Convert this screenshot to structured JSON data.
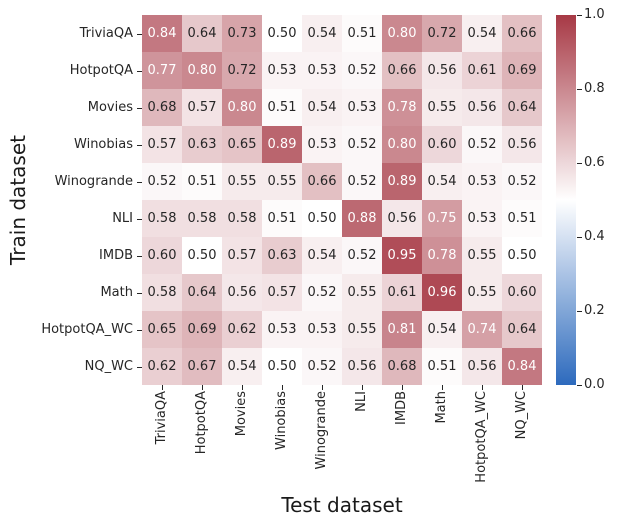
{
  "chart_data": {
    "type": "heatmap",
    "title": "",
    "xlabel": "Test dataset",
    "ylabel": "Train dataset",
    "rows": [
      "TriviaQA",
      "HotpotQA",
      "Movies",
      "Winobias",
      "Winogrande",
      "NLI",
      "IMDB",
      "Math",
      "HotpotQA_WC",
      "NQ_WC"
    ],
    "columns": [
      "TriviaQA",
      "HotpotQA",
      "Movies",
      "Winobias",
      "Winogrande",
      "NLI",
      "IMDB",
      "Math",
      "HotpotQA_WC",
      "NQ_WC"
    ],
    "values": [
      [
        0.84,
        0.64,
        0.73,
        0.5,
        0.54,
        0.51,
        0.8,
        0.72,
        0.54,
        0.66
      ],
      [
        0.77,
        0.8,
        0.72,
        0.53,
        0.53,
        0.52,
        0.66,
        0.56,
        0.61,
        0.69
      ],
      [
        0.68,
        0.57,
        0.8,
        0.51,
        0.54,
        0.53,
        0.78,
        0.55,
        0.56,
        0.64
      ],
      [
        0.57,
        0.63,
        0.65,
        0.89,
        0.53,
        0.52,
        0.8,
        0.6,
        0.52,
        0.56
      ],
      [
        0.52,
        0.51,
        0.55,
        0.55,
        0.66,
        0.52,
        0.89,
        0.54,
        0.53,
        0.52
      ],
      [
        0.58,
        0.58,
        0.58,
        0.51,
        0.5,
        0.88,
        0.56,
        0.75,
        0.53,
        0.51
      ],
      [
        0.6,
        0.5,
        0.57,
        0.63,
        0.54,
        0.52,
        0.95,
        0.78,
        0.55,
        0.5
      ],
      [
        0.58,
        0.64,
        0.56,
        0.57,
        0.52,
        0.55,
        0.61,
        0.96,
        0.55,
        0.6
      ],
      [
        0.65,
        0.69,
        0.62,
        0.53,
        0.53,
        0.55,
        0.81,
        0.54,
        0.74,
        0.64
      ],
      [
        0.62,
        0.67,
        0.54,
        0.5,
        0.52,
        0.56,
        0.68,
        0.51,
        0.56,
        0.84
      ]
    ],
    "vmin": 0.0,
    "vmax": 1.0,
    "annotation_precision": 2,
    "white_text_threshold": 0.735,
    "grid": false,
    "legend_position": "colorbar-right",
    "colormap": {
      "name": "vlag-diverging",
      "low": "#2d6abd",
      "mid": "#ffffff",
      "high": "#a73945"
    },
    "colorbar": {
      "tick_labels": [
        "1.0",
        "0.8",
        "0.6",
        "0.4",
        "0.2",
        "0.0"
      ],
      "tick_values": [
        1.0,
        0.8,
        0.6,
        0.4,
        0.2,
        0.0
      ]
    },
    "text_colors": {
      "annotation_dark": "#262626",
      "annotation_light": "#ffffff",
      "axis_text": "#262626"
    }
  }
}
